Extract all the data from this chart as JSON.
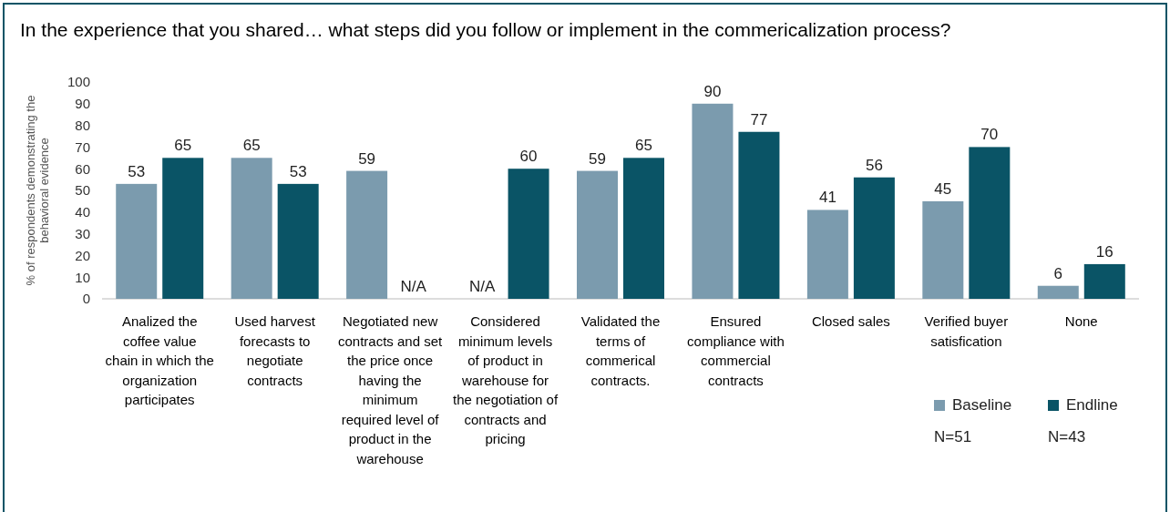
{
  "chart_data": {
    "type": "bar",
    "title": "In the experience that you shared… what steps did you follow or implement in the commericalization process?",
    "ylabel": "% of respondents demonstrating the behavioral evidence",
    "categories": [
      "Analized the coffee value chain in which the organization participates",
      "Used harvest forecasts to negotiate contracts",
      "Negotiated new contracts and set the price once having the minimum required level of product in the warehouse",
      "Considered minimum levels of product in warehouse for the negotiation of contracts and pricing",
      "Validated the terms of commerical contracts.",
      "Ensured compliance with commercial contracts",
      "Closed sales",
      "Verified buyer satisfication",
      "None"
    ],
    "series": [
      {
        "name": "Baseline",
        "color": "#7b9bae",
        "values": [
          53,
          65,
          59,
          null,
          59,
          90,
          41,
          45,
          6
        ],
        "value_labels": [
          "53",
          "65",
          "59",
          "N/A",
          "59",
          "90",
          "41",
          "45",
          "6"
        ]
      },
      {
        "name": "Endline",
        "color": "#0a5466",
        "values": [
          65,
          53,
          null,
          60,
          65,
          77,
          56,
          70,
          16
        ],
        "value_labels": [
          "65",
          "53",
          "N/A",
          "60",
          "65",
          "77",
          "56",
          "70",
          "16"
        ]
      }
    ],
    "annotations": [
      "N=51",
      "N=43"
    ],
    "ylim": [
      0,
      100
    ],
    "yticks": [
      0,
      10,
      20,
      30,
      40,
      50,
      60,
      70,
      80,
      90,
      100
    ],
    "grid": false,
    "legend": "bottom right"
  }
}
